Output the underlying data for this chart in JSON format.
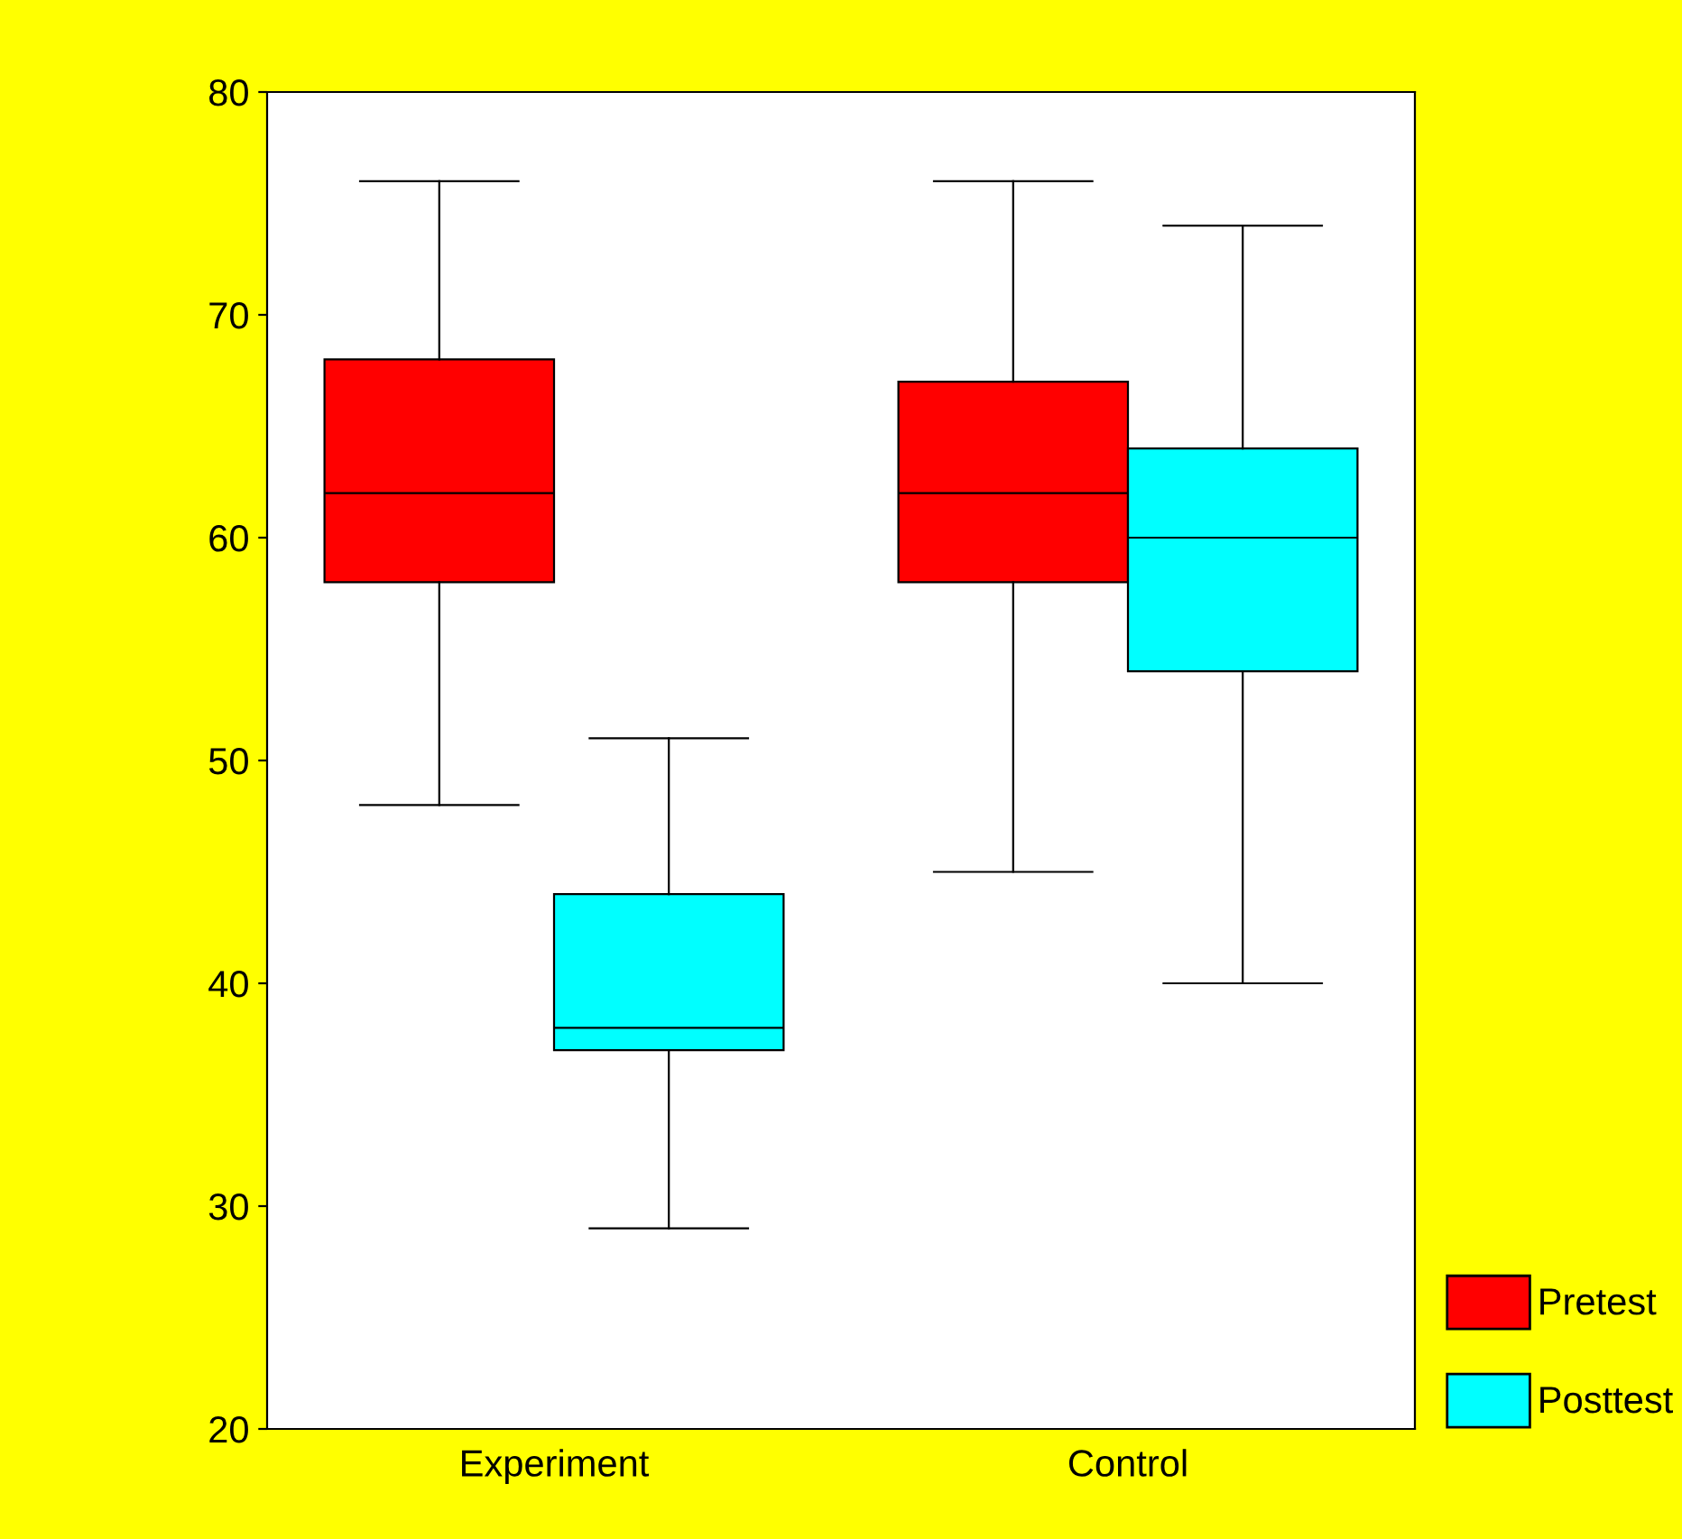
{
  "chart_data": {
    "type": "box",
    "categories": [
      "Experiment",
      "Control"
    ],
    "series": [
      {
        "name": "Pretest",
        "color": "#ff0000",
        "boxes": [
          {
            "low": 48,
            "q1": 58,
            "median": 62,
            "q3": 68,
            "high": 76
          },
          {
            "low": 45,
            "q1": 58,
            "median": 62,
            "q3": 67,
            "high": 76
          }
        ]
      },
      {
        "name": "Posttest",
        "color": "#00ffff",
        "boxes": [
          {
            "low": 29,
            "q1": 37,
            "median": 38,
            "q3": 44,
            "high": 51
          },
          {
            "low": 40,
            "q1": 54,
            "median": 60,
            "q3": 64,
            "high": 74
          }
        ]
      }
    ],
    "ylim": [
      20,
      80
    ],
    "yticks": [
      20,
      30,
      40,
      50,
      60,
      70,
      80
    ],
    "grid": false,
    "legend": "bottom right"
  }
}
